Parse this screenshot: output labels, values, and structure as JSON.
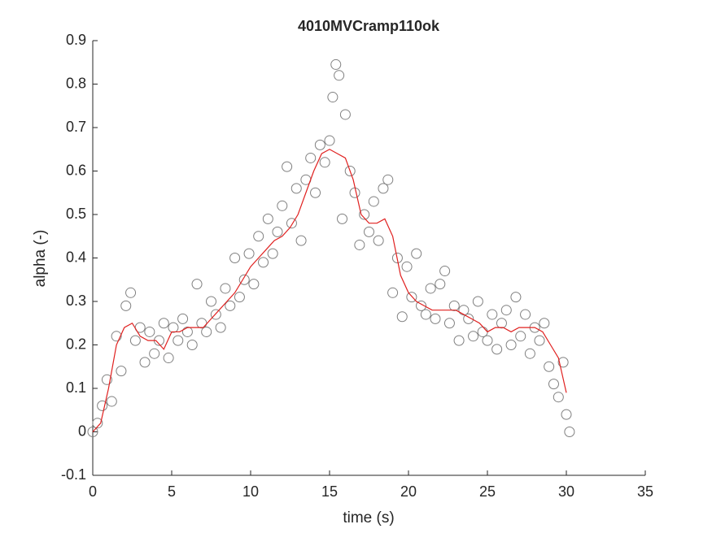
{
  "chart_data": {
    "type": "scatter",
    "title": "4010MVCramp110ok",
    "xlabel": "time (s)",
    "ylabel": "alpha (-)",
    "xlim": [
      0,
      35
    ],
    "xticks": [
      0,
      5,
      10,
      15,
      20,
      25,
      30,
      35
    ],
    "ylim": [
      -0.1,
      0.9
    ],
    "yticks": [
      -0.1,
      0,
      0.1,
      0.2,
      0.3,
      0.4,
      0.5,
      0.6,
      0.7,
      0.8,
      0.9
    ],
    "series": [
      {
        "type": "scatter",
        "color": "#808080",
        "x": [
          0,
          0.3,
          0.6,
          0.9,
          1.2,
          1.5,
          1.8,
          2.1,
          2.4,
          2.7,
          3.0,
          3.3,
          3.6,
          3.9,
          4.2,
          4.5,
          4.8,
          5.1,
          5.4,
          5.7,
          6.0,
          6.3,
          6.6,
          6.9,
          7.2,
          7.5,
          7.8,
          8.1,
          8.4,
          8.7,
          9.0,
          9.3,
          9.6,
          9.9,
          10.2,
          10.5,
          10.8,
          11.1,
          11.4,
          11.7,
          12.0,
          12.3,
          12.6,
          12.9,
          13.2,
          13.5,
          13.8,
          14.1,
          14.4,
          14.7,
          15.0,
          15.2,
          15.4,
          15.6,
          15.8,
          16.0,
          16.3,
          16.6,
          16.9,
          17.2,
          17.5,
          17.8,
          18.1,
          18.4,
          18.7,
          19.0,
          19.3,
          19.6,
          19.9,
          20.2,
          20.5,
          20.8,
          21.1,
          21.4,
          21.7,
          22.0,
          22.3,
          22.6,
          22.9,
          23.2,
          23.5,
          23.8,
          24.1,
          24.4,
          24.7,
          25.0,
          25.3,
          25.6,
          25.9,
          26.2,
          26.5,
          26.8,
          27.1,
          27.4,
          27.7,
          28.0,
          28.3,
          28.6,
          28.9,
          29.2,
          29.5,
          29.8,
          30.0,
          30.2
        ],
        "values": [
          0.0,
          0.02,
          0.06,
          0.12,
          0.07,
          0.22,
          0.14,
          0.29,
          0.32,
          0.21,
          0.24,
          0.16,
          0.23,
          0.18,
          0.21,
          0.25,
          0.17,
          0.24,
          0.21,
          0.26,
          0.23,
          0.2,
          0.34,
          0.25,
          0.23,
          0.3,
          0.27,
          0.24,
          0.33,
          0.29,
          0.4,
          0.31,
          0.35,
          0.41,
          0.34,
          0.45,
          0.39,
          0.49,
          0.41,
          0.46,
          0.52,
          0.61,
          0.48,
          0.56,
          0.44,
          0.58,
          0.63,
          0.55,
          0.66,
          0.62,
          0.67,
          0.77,
          0.845,
          0.82,
          0.49,
          0.73,
          0.6,
          0.55,
          0.43,
          0.5,
          0.46,
          0.53,
          0.44,
          0.56,
          0.58,
          0.32,
          0.4,
          0.265,
          0.38,
          0.31,
          0.41,
          0.29,
          0.27,
          0.33,
          0.26,
          0.34,
          0.37,
          0.25,
          0.29,
          0.21,
          0.28,
          0.26,
          0.22,
          0.3,
          0.23,
          0.21,
          0.27,
          0.19,
          0.25,
          0.28,
          0.2,
          0.31,
          0.22,
          0.27,
          0.18,
          0.24,
          0.21,
          0.25,
          0.15,
          0.11,
          0.08,
          0.16,
          0.04,
          0.0
        ]
      },
      {
        "type": "line",
        "color": "#e0201f",
        "x": [
          0,
          0.5,
          1,
          1.5,
          2,
          2.5,
          3,
          3.5,
          4,
          4.5,
          5,
          5.5,
          6,
          6.5,
          7,
          7.5,
          8,
          8.5,
          9,
          9.5,
          10,
          10.5,
          11,
          11.5,
          12,
          12.5,
          13,
          13.5,
          14,
          14.5,
          15,
          15.5,
          16,
          16.5,
          17,
          17.5,
          18,
          18.5,
          19,
          19.5,
          20,
          20.5,
          21,
          21.5,
          22,
          22.5,
          23,
          23.5,
          24,
          24.5,
          25,
          25.5,
          26,
          26.5,
          27,
          27.5,
          28,
          28.5,
          29,
          29.5,
          30
        ],
        "values": [
          0,
          0.02,
          0.1,
          0.2,
          0.24,
          0.25,
          0.22,
          0.21,
          0.21,
          0.19,
          0.23,
          0.23,
          0.24,
          0.24,
          0.24,
          0.26,
          0.28,
          0.3,
          0.32,
          0.35,
          0.38,
          0.4,
          0.42,
          0.44,
          0.45,
          0.47,
          0.5,
          0.55,
          0.6,
          0.64,
          0.65,
          0.64,
          0.63,
          0.58,
          0.5,
          0.48,
          0.48,
          0.49,
          0.45,
          0.36,
          0.32,
          0.3,
          0.29,
          0.28,
          0.28,
          0.28,
          0.28,
          0.27,
          0.26,
          0.25,
          0.23,
          0.24,
          0.24,
          0.23,
          0.24,
          0.24,
          0.24,
          0.23,
          0.2,
          0.17,
          0.09
        ]
      }
    ]
  }
}
